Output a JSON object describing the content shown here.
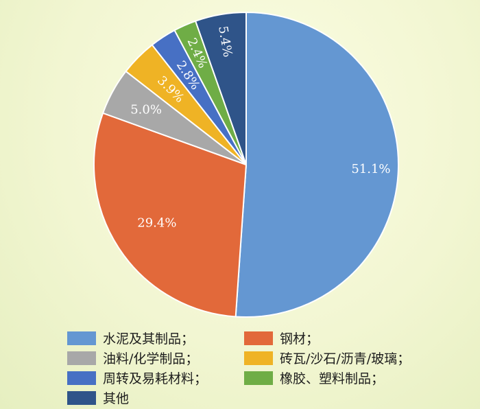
{
  "chart_data": {
    "type": "pie",
    "slices": [
      {
        "label": "水泥及其制品；",
        "value": 51.1,
        "display": "51.1%",
        "color": "#6497d2"
      },
      {
        "label": "钢材；",
        "value": 29.4,
        "display": "29.4%",
        "color": "#e2693a"
      },
      {
        "label": "油料/化学制品；",
        "value": 5.0,
        "display": "5.0%",
        "color": "#a8a8a8"
      },
      {
        "label": "砖瓦/沙石/沥青/玻璃；",
        "value": 3.9,
        "display": "3.9%",
        "color": "#efb325"
      },
      {
        "label": "周转及易耗材料；",
        "value": 2.8,
        "display": "2.8%",
        "color": "#4770c4"
      },
      {
        "label": "橡胶、塑料制品；",
        "value": 2.4,
        "display": "2.4%",
        "color": "#6fad46"
      },
      {
        "label": "其他",
        "value": 5.4,
        "display": "5.4%",
        "color": "#2f5489"
      }
    ],
    "legend_position": "bottom",
    "start_angle": "top",
    "direction": "clockwise"
  }
}
